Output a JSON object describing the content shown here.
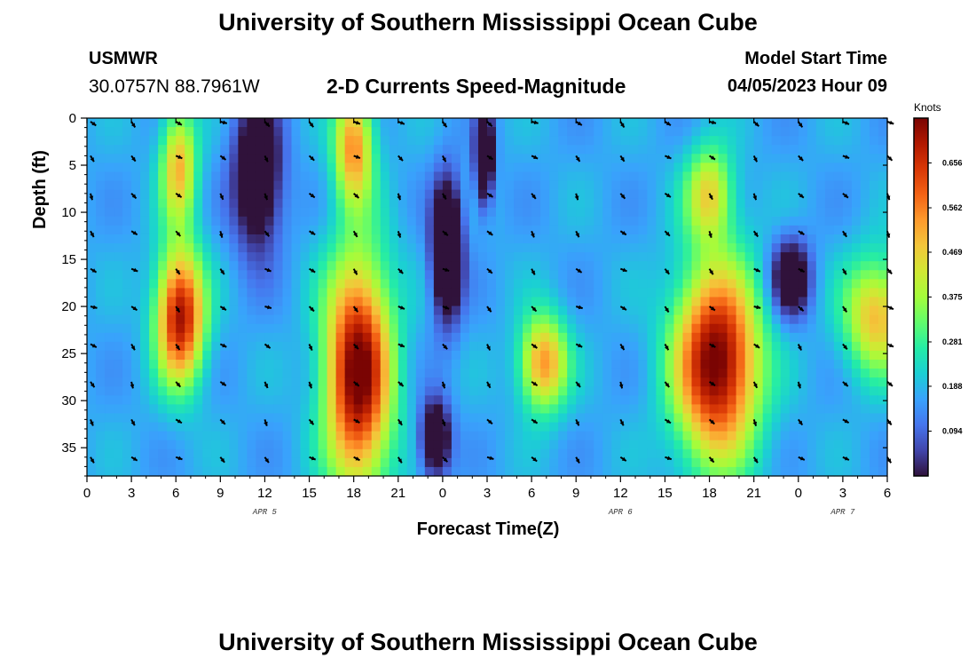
{
  "header": {
    "title": "University of Southern Mississippi Ocean Cube",
    "station": "USMWR",
    "coords": "30.0757N  88.7961W",
    "subtitle": "2-D Currents Speed-Magnitude",
    "model_start_label": "Model Start Time",
    "model_start_value": "04/05/2023 Hour 09"
  },
  "footer": {
    "title": "University of Southern Mississippi Ocean Cube"
  },
  "chart_data": {
    "type": "heatmap",
    "title": "2-D Currents Speed-Magnitude",
    "xlabel": "Forecast Time(Z)",
    "ylabel": "Depth (ft)",
    "x_range_hours": [
      0,
      54
    ],
    "x_start_hour_of_day": 0,
    "x_tick_step_hours": 3,
    "xtick_labels": [
      "0",
      "3",
      "6",
      "9",
      "12",
      "15",
      "18",
      "21",
      "0",
      "3",
      "6",
      "9",
      "12",
      "15",
      "18",
      "21",
      "0",
      "3",
      "6"
    ],
    "date_labels": [
      {
        "text": "APR 5",
        "hour": 12
      },
      {
        "text": "APR 6",
        "hour": 36
      },
      {
        "text": "APR 7",
        "hour": 51
      }
    ],
    "ylim": [
      0,
      38
    ],
    "y_inverted": true,
    "ytick_labels": [
      "0",
      "5",
      "10",
      "15",
      "20",
      "25",
      "30",
      "35"
    ],
    "ytick_values": [
      0,
      5,
      10,
      15,
      20,
      25,
      30,
      35
    ],
    "colorbar": {
      "unit": "Knots",
      "range": [
        0,
        0.75
      ],
      "tick_labels": [
        "0.656",
        "0.562",
        "0.469",
        "0.375",
        "0.281",
        "0.188",
        "0.094"
      ],
      "tick_values": [
        0.656,
        0.562,
        0.469,
        0.375,
        0.281,
        0.188,
        0.094
      ],
      "colors": [
        "#30123b",
        "#4145ab",
        "#4675ed",
        "#39a2fc",
        "#1bcfd4",
        "#24eca6",
        "#61fc6c",
        "#a4fc3b",
        "#d1e834",
        "#f3c63a",
        "#fe9b2d",
        "#f36315",
        "#d93806",
        "#b11901",
        "#7a0403"
      ]
    },
    "blobs": [
      {
        "hour": 6.3,
        "depth": 21,
        "spread_h": 1.6,
        "spread_d": 7,
        "value": 0.72
      },
      {
        "hour": 6.2,
        "depth": 5,
        "spread_h": 1.2,
        "spread_d": 6,
        "value": 0.5
      },
      {
        "hour": 18.3,
        "depth": 27,
        "spread_h": 2.2,
        "spread_d": 12,
        "value": 0.78
      },
      {
        "hour": 18.0,
        "depth": 3,
        "spread_h": 1.3,
        "spread_d": 6,
        "value": 0.55
      },
      {
        "hour": 30.8,
        "depth": 26,
        "spread_h": 1.6,
        "spread_d": 5,
        "value": 0.55
      },
      {
        "hour": 42.5,
        "depth": 26,
        "spread_h": 2.8,
        "spread_d": 10,
        "value": 0.78
      },
      {
        "hour": 42.0,
        "depth": 8,
        "spread_h": 1.6,
        "spread_d": 5,
        "value": 0.45
      },
      {
        "hour": 53.3,
        "depth": 21,
        "spread_h": 2.2,
        "spread_d": 6,
        "value": 0.5
      },
      {
        "hour": 24.3,
        "depth": 14,
        "spread_h": 1.0,
        "spread_d": 7,
        "value": -0.25
      },
      {
        "hour": 26.8,
        "depth": 4,
        "spread_h": 0.6,
        "spread_d": 5,
        "value": -0.2
      },
      {
        "hour": 11.5,
        "depth": 6,
        "spread_h": 1.6,
        "spread_d": 8,
        "value": -0.15
      },
      {
        "hour": 23.5,
        "depth": 34,
        "spread_h": 1.0,
        "spread_d": 4,
        "value": -0.15
      },
      {
        "hour": 47.5,
        "depth": 17,
        "spread_h": 1.3,
        "spread_d": 4,
        "value": -0.12
      }
    ],
    "background_value": 0.17,
    "vectors": {
      "hours": [
        0,
        3,
        6,
        9,
        12,
        15,
        18,
        21,
        24,
        27,
        30,
        33,
        36,
        39,
        42,
        45,
        48,
        51,
        54
      ],
      "depths": [
        0,
        4,
        8,
        12,
        16,
        20,
        24,
        28,
        32,
        36
      ],
      "direction_deg": 135
    }
  }
}
